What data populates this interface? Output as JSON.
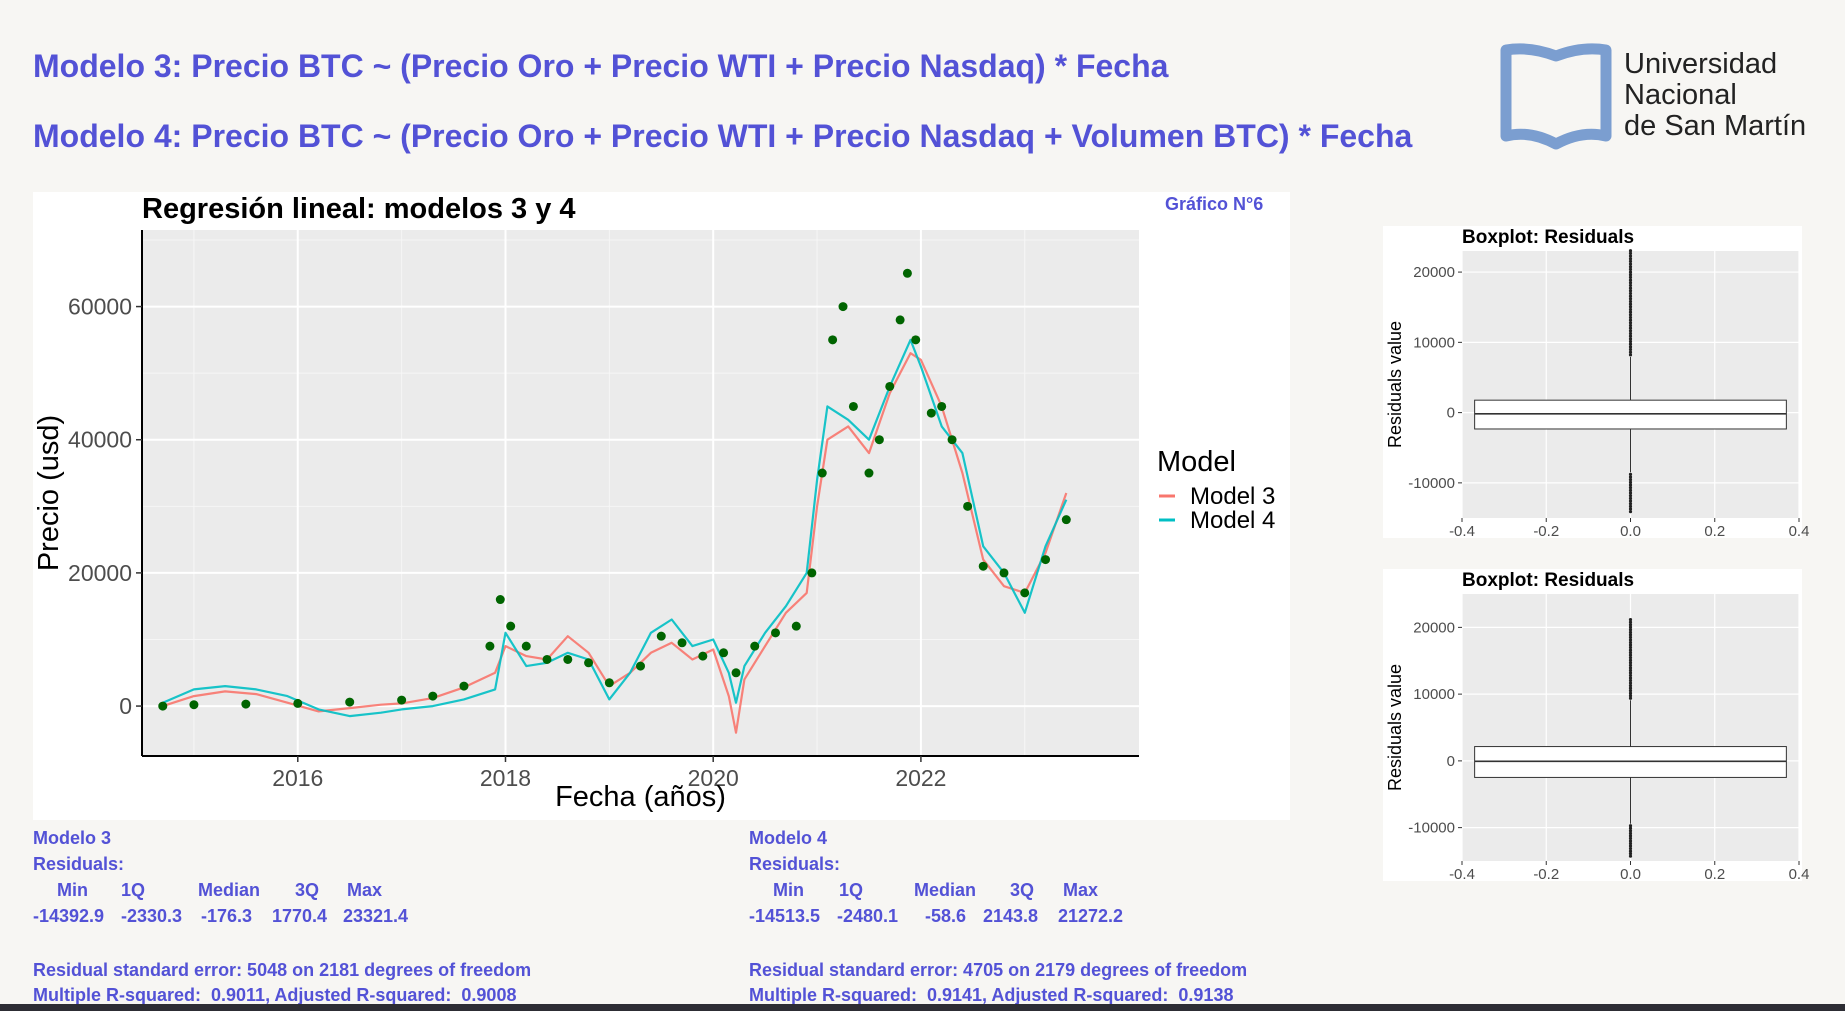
{
  "header": {
    "line1": "Modelo 3: Precio BTC ~ (Precio Oro + Precio WTI + Precio Nasdaq) * Fecha",
    "line2": "Modelo 4: Precio BTC ~ (Precio Oro + Precio WTI + Precio Nasdaq + Volumen BTC) * Fecha"
  },
  "logo": {
    "line1": "Universidad",
    "line2": "Nacional",
    "line3": "de San Martín",
    "color": "#7b9ed0"
  },
  "chart_tag": "Gráfico N°6",
  "chart_data": [
    {
      "type": "line",
      "title": "Regresión lineal: modelos 3 y 4",
      "xlabel": "Fecha (años)",
      "ylabel": "Precio (usd)",
      "xlim": [
        2014.5,
        2024.1
      ],
      "ylim": [
        -7500,
        71500
      ],
      "x_ticks": [
        2016,
        2018,
        2020,
        2022
      ],
      "y_ticks": [
        0,
        20000,
        40000,
        60000
      ],
      "y_tick_labels": [
        "0",
        "20000",
        "40000",
        "60000"
      ],
      "grid": true,
      "legend": {
        "title": "Model",
        "position": "right"
      },
      "series": [
        {
          "name": "Model 3",
          "color": "#f8766d",
          "x": [
            2014.7,
            2015.0,
            2015.3,
            2015.6,
            2015.9,
            2016.2,
            2016.5,
            2016.8,
            2017.0,
            2017.3,
            2017.6,
            2017.9,
            2018.0,
            2018.2,
            2018.4,
            2018.6,
            2018.8,
            2019.0,
            2019.2,
            2019.4,
            2019.6,
            2019.8,
            2020.0,
            2020.15,
            2020.22,
            2020.3,
            2020.5,
            2020.7,
            2020.9,
            2021.0,
            2021.1,
            2021.3,
            2021.5,
            2021.7,
            2021.9,
            2022.0,
            2022.2,
            2022.4,
            2022.6,
            2022.8,
            2023.0,
            2023.2,
            2023.4
          ],
          "y": [
            0,
            1500,
            2200,
            1800,
            500,
            -800,
            -300,
            200,
            400,
            1200,
            2800,
            5000,
            9000,
            7500,
            7000,
            10500,
            8000,
            3000,
            5000,
            8000,
            9500,
            7000,
            8500,
            1500,
            -4000,
            4000,
            9000,
            14000,
            17000,
            30000,
            40000,
            42000,
            38000,
            47000,
            53000,
            52000,
            45000,
            35000,
            22000,
            18000,
            17000,
            23000,
            32000
          ]
        },
        {
          "name": "Model 4",
          "color": "#00bfc4",
          "x": [
            2014.7,
            2015.0,
            2015.3,
            2015.6,
            2015.9,
            2016.2,
            2016.5,
            2016.8,
            2017.0,
            2017.3,
            2017.6,
            2017.9,
            2018.0,
            2018.2,
            2018.4,
            2018.6,
            2018.8,
            2019.0,
            2019.2,
            2019.4,
            2019.6,
            2019.8,
            2020.0,
            2020.15,
            2020.22,
            2020.3,
            2020.5,
            2020.7,
            2020.9,
            2021.0,
            2021.1,
            2021.3,
            2021.5,
            2021.7,
            2021.9,
            2022.0,
            2022.2,
            2022.4,
            2022.6,
            2022.8,
            2023.0,
            2023.2,
            2023.4
          ],
          "y": [
            500,
            2500,
            3000,
            2500,
            1500,
            -500,
            -1500,
            -1000,
            -500,
            0,
            1000,
            2500,
            11000,
            6000,
            6500,
            8000,
            7000,
            1000,
            5000,
            11000,
            13000,
            9000,
            10000,
            5000,
            500,
            6000,
            11000,
            15000,
            20000,
            34000,
            45000,
            43000,
            40000,
            48000,
            55000,
            51000,
            42000,
            38000,
            24000,
            20000,
            14000,
            24000,
            31000
          ]
        },
        {
          "name": "",
          "color": "#006400",
          "render": "points",
          "x": [
            2014.7,
            2015.0,
            2015.5,
            2016.0,
            2016.5,
            2017.0,
            2017.3,
            2017.6,
            2017.85,
            2017.95,
            2018.05,
            2018.2,
            2018.4,
            2018.6,
            2018.8,
            2019.0,
            2019.3,
            2019.5,
            2019.7,
            2019.9,
            2020.1,
            2020.22,
            2020.4,
            2020.6,
            2020.8,
            2020.95,
            2021.05,
            2021.15,
            2021.25,
            2021.35,
            2021.5,
            2021.6,
            2021.7,
            2021.8,
            2021.87,
            2021.95,
            2022.1,
            2022.2,
            2022.3,
            2022.45,
            2022.6,
            2022.8,
            2023.0,
            2023.2,
            2023.4
          ],
          "y": [
            0,
            200,
            300,
            400,
            600,
            900,
            1500,
            3000,
            9000,
            16000,
            12000,
            9000,
            7000,
            7000,
            6500,
            3500,
            6000,
            10500,
            9500,
            7500,
            8000,
            5000,
            9000,
            11000,
            12000,
            20000,
            35000,
            55000,
            60000,
            45000,
            35000,
            40000,
            48000,
            58000,
            65000,
            55000,
            44000,
            45000,
            40000,
            30000,
            21000,
            20000,
            17000,
            22000,
            28000
          ]
        }
      ]
    },
    {
      "type": "box",
      "title": "Boxplot: Residuals",
      "ylabel": "Residuals value",
      "xlim": [
        -0.4,
        0.4
      ],
      "x_ticks": [
        -0.4,
        -0.2,
        0.0,
        0.2,
        0.4
      ],
      "x_tick_labels": [
        "-0.4",
        "-0.2",
        "0.0",
        "0.2",
        "0.4"
      ],
      "ylim": [
        -15000,
        23000
      ],
      "y_ticks": [
        -10000,
        0,
        10000,
        20000
      ],
      "y_tick_labels": [
        "-10000",
        "0",
        "10000",
        "20000"
      ],
      "grid": true,
      "stats": {
        "min": -14392.9,
        "q1": -2330.3,
        "median": -176.3,
        "q3": 1770.4,
        "max": 23321.4
      }
    },
    {
      "type": "box",
      "title": "Boxplot: Residuals",
      "ylabel": "Residuals value",
      "xlim": [
        -0.4,
        0.4
      ],
      "x_ticks": [
        -0.4,
        -0.2,
        0.0,
        0.2,
        0.4
      ],
      "x_tick_labels": [
        "-0.4",
        "-0.2",
        "0.0",
        "0.2",
        "0.4"
      ],
      "ylim": [
        -15000,
        25000
      ],
      "y_ticks": [
        -10000,
        0,
        10000,
        20000
      ],
      "y_tick_labels": [
        "-10000",
        "0",
        "10000",
        "20000"
      ],
      "grid": true,
      "stats": {
        "min": -14513.5,
        "q1": -2480.1,
        "median": -58.6,
        "q3": 2143.8,
        "max": 21272.2
      }
    }
  ],
  "stats_model3": {
    "title": "Modelo 3",
    "residuals_label": "Residuals:",
    "headers": [
      "Min",
      "1Q",
      "Median",
      "3Q",
      "Max"
    ],
    "values": [
      "-14392.9",
      "-2330.3",
      "-176.3",
      "1770.4",
      "23321.4"
    ],
    "rse": "Residual standard error: 5048 on 2181 degrees of freedom",
    "r2": "Multiple R-squared:  0.9011, Adjusted R-squared:  0.9008"
  },
  "stats_model4": {
    "title": "Modelo 4",
    "residuals_label": "Residuals:",
    "headers": [
      "Min",
      "1Q",
      "Median",
      "3Q",
      "Max"
    ],
    "values": [
      "-14513.5",
      "-2480.1",
      "-58.6",
      "2143.8",
      "21272.2"
    ],
    "rse": "Residual standard error: 4705 on 2179 degrees of freedom",
    "r2": "Multiple R-squared:  0.9141, Adjusted R-squared:  0.9138"
  }
}
